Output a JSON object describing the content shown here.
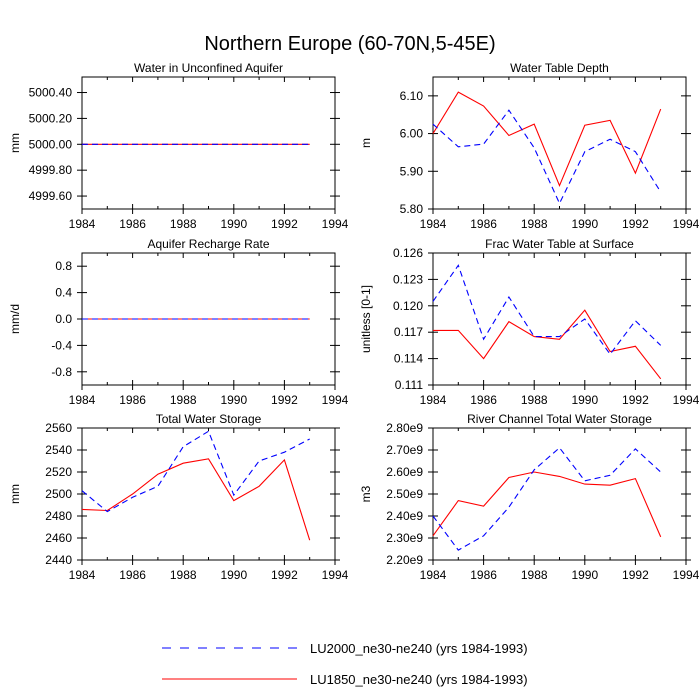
{
  "figure_title": "Northern Europe (60-70N,5-45E)",
  "legend": [
    {
      "label": "LU2000_ne30-ne240 (yrs 1984-1993)",
      "color": "#0000ff",
      "dash": true
    },
    {
      "label": "LU1850_ne30-ne240 (yrs 1984-1993)",
      "color": "#ff0000",
      "dash": false
    }
  ],
  "colors": {
    "lu2000": "#0000ff",
    "lu1850": "#ff0000"
  },
  "chart_data": [
    {
      "type": "line",
      "title": "Water in Unconfined Aquifer",
      "ylabel": "mm",
      "xlim": [
        1984,
        1994
      ],
      "x_ticks": [
        1984,
        1986,
        1988,
        1990,
        1992,
        1994
      ],
      "ylim": [
        4999.5,
        5000.52
      ],
      "y_ticks": [
        4999.6,
        4999.8,
        5000.0,
        5000.2,
        5000.4
      ],
      "y_tick_labels": [
        "4999.60",
        "4999.80",
        "5000.00",
        "5000.20",
        "5000.40"
      ],
      "x": [
        1984,
        1985,
        1986,
        1987,
        1988,
        1989,
        1990,
        1991,
        1992,
        1993
      ],
      "series": [
        {
          "name": "LU2000_ne30-ne240",
          "values": [
            5000,
            5000,
            5000,
            5000,
            5000,
            5000,
            5000,
            5000,
            5000,
            5000
          ]
        },
        {
          "name": "LU1850_ne30-ne240",
          "values": [
            5000,
            5000,
            5000,
            5000,
            5000,
            5000,
            5000,
            5000,
            5000,
            5000
          ]
        }
      ]
    },
    {
      "type": "line",
      "title": "Water Table Depth",
      "ylabel": "m",
      "xlim": [
        1984,
        1994
      ],
      "x_ticks": [
        1984,
        1986,
        1988,
        1990,
        1992,
        1994
      ],
      "ylim": [
        5.8,
        6.15
      ],
      "y_ticks": [
        5.8,
        5.9,
        6.0,
        6.1
      ],
      "y_tick_labels": [
        "5.80",
        "5.90",
        "6.00",
        "6.10"
      ],
      "x": [
        1984,
        1985,
        1986,
        1987,
        1988,
        1989,
        1990,
        1991,
        1992,
        1993
      ],
      "series": [
        {
          "name": "LU2000_ne30-ne240",
          "values": [
            6.025,
            5.965,
            5.972,
            6.062,
            5.962,
            5.815,
            5.952,
            5.985,
            5.952,
            5.845
          ]
        },
        {
          "name": "LU1850_ne30-ne240",
          "values": [
            6.0,
            6.11,
            6.073,
            5.995,
            6.025,
            5.862,
            6.022,
            6.035,
            5.895,
            6.065
          ]
        }
      ]
    },
    {
      "type": "line",
      "title": "Aquifer Recharge Rate",
      "ylabel": "mm/d",
      "xlim": [
        1984,
        1994
      ],
      "x_ticks": [
        1984,
        1986,
        1988,
        1990,
        1992,
        1994
      ],
      "ylim": [
        -1.0,
        1.0
      ],
      "y_ticks": [
        -0.8,
        -0.4,
        0.0,
        0.4,
        0.8
      ],
      "y_tick_labels": [
        "-0.8",
        "-0.4",
        "0.0",
        "0.4",
        "0.8"
      ],
      "x": [
        1984,
        1985,
        1986,
        1987,
        1988,
        1989,
        1990,
        1991,
        1992,
        1993
      ],
      "series": [
        {
          "name": "LU2000_ne30-ne240",
          "values": [
            0,
            0,
            0,
            0,
            0,
            0,
            0,
            0,
            0,
            0
          ]
        },
        {
          "name": "LU1850_ne30-ne240",
          "values": [
            0,
            0,
            0,
            0,
            0,
            0,
            0,
            0,
            0,
            0
          ]
        }
      ]
    },
    {
      "type": "line",
      "title": "Frac Water Table at Surface",
      "ylabel": "unitless [0-1]",
      "xlim": [
        1984,
        1994
      ],
      "x_ticks": [
        1984,
        1986,
        1988,
        1990,
        1992,
        1994
      ],
      "ylim": [
        0.111,
        0.126
      ],
      "y_ticks": [
        0.111,
        0.114,
        0.117,
        0.12,
        0.123,
        0.126
      ],
      "y_tick_labels": [
        "0.111",
        "0.114",
        "0.117",
        "0.120",
        "0.123",
        "0.126"
      ],
      "x": [
        1984,
        1985,
        1986,
        1987,
        1988,
        1989,
        1990,
        1991,
        1992,
        1993
      ],
      "series": [
        {
          "name": "LU2000_ne30-ne240",
          "values": [
            0.1205,
            0.1246,
            0.1162,
            0.121,
            0.1165,
            0.1165,
            0.1185,
            0.1145,
            0.1183,
            0.1155
          ]
        },
        {
          "name": "LU1850_ne30-ne240",
          "values": [
            0.1172,
            0.1172,
            0.114,
            0.1182,
            0.1165,
            0.1162,
            0.1195,
            0.1148,
            0.1154,
            0.1117
          ]
        }
      ]
    },
    {
      "type": "line",
      "title": "Total Water Storage",
      "ylabel": "mm",
      "xlim": [
        1984,
        1994
      ],
      "x_ticks": [
        1984,
        1986,
        1988,
        1990,
        1992,
        1994
      ],
      "ylim": [
        2440,
        2560
      ],
      "y_ticks": [
        2440,
        2460,
        2480,
        2500,
        2520,
        2540,
        2560
      ],
      "y_tick_labels": [
        "2440",
        "2460",
        "2480",
        "2500",
        "2520",
        "2540",
        "2560"
      ],
      "x": [
        1984,
        1985,
        1986,
        1987,
        1988,
        1989,
        1990,
        1991,
        1992,
        1993
      ],
      "series": [
        {
          "name": "LU2000_ne30-ne240",
          "values": [
            2503,
            2484,
            2497,
            2507,
            2543,
            2557,
            2499,
            2530,
            2538,
            2550
          ]
        },
        {
          "name": "LU1850_ne30-ne240",
          "values": [
            2486,
            2485,
            2500,
            2518,
            2528,
            2532,
            2494,
            2507,
            2531,
            2458
          ]
        }
      ]
    },
    {
      "type": "line",
      "title": "River Channel Total Water Storage",
      "ylabel": "m3",
      "xlim": [
        1984,
        1994
      ],
      "x_ticks": [
        1984,
        1986,
        1988,
        1990,
        1992,
        1994
      ],
      "ylim": [
        2200000000.0,
        2800000000.0
      ],
      "y_ticks": [
        2200000000.0,
        2300000000.0,
        2400000000.0,
        2500000000.0,
        2600000000.0,
        2700000000.0,
        2800000000.0
      ],
      "y_tick_labels": [
        "2.20e9",
        "2.30e9",
        "2.40e9",
        "2.50e9",
        "2.60e9",
        "2.70e9",
        "2.80e9"
      ],
      "x": [
        1984,
        1985,
        1986,
        1987,
        1988,
        1989,
        1990,
        1991,
        1992,
        1993
      ],
      "series": [
        {
          "name": "LU2000_ne30-ne240",
          "values": [
            2400000000.0,
            2245000000.0,
            2310000000.0,
            2440000000.0,
            2610000000.0,
            2710000000.0,
            2560000000.0,
            2585000000.0,
            2705000000.0,
            2600000000.0
          ]
        },
        {
          "name": "LU1850_ne30-ne240",
          "values": [
            2310000000.0,
            2470000000.0,
            2445000000.0,
            2575000000.0,
            2600000000.0,
            2580000000.0,
            2545000000.0,
            2540000000.0,
            2570000000.0,
            2305000000.0
          ]
        }
      ]
    }
  ]
}
